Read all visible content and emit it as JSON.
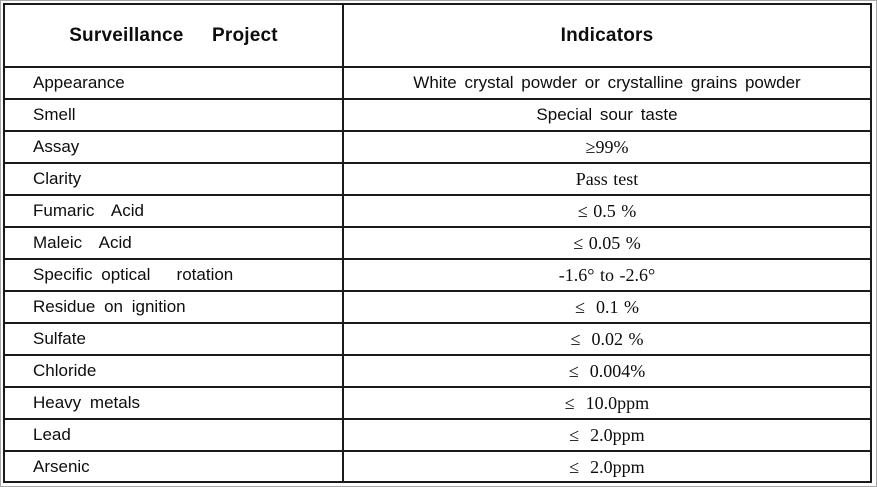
{
  "table": {
    "border_color": "#1a1a1a",
    "header": {
      "col1": "Surveillance   Project",
      "col2": "Indicators"
    },
    "rows": [
      {
        "label": "Appearance",
        "value": "White crystal powder or crystalline grains powder",
        "value_style": "sans"
      },
      {
        "label": "Smell",
        "value": "Special sour taste",
        "value_style": "sans"
      },
      {
        "label": "Assay",
        "value": "≥99%",
        "value_style": "serif"
      },
      {
        "label": "Clarity",
        "value": "Pass test",
        "value_style": "serif"
      },
      {
        "label": "Fumaric  Acid",
        "value": "≤ 0.5 %",
        "value_style": "serif"
      },
      {
        "label": "Maleic  Acid",
        "value": "≤ 0.05 %",
        "value_style": "serif"
      },
      {
        "label": "Specific optical   rotation",
        "value": "-1.6° to -2.6°",
        "value_style": "serif"
      },
      {
        "label": "Residue on ignition",
        "value": "≤  0.1 %",
        "value_style": "serif"
      },
      {
        "label": "Sulfate",
        "value": "≤  0.02 %",
        "value_style": "serif"
      },
      {
        "label": "Chloride",
        "value": "≤  0.004%",
        "value_style": "serif"
      },
      {
        "label": "Heavy metals",
        "value": "≤  10.0ppm",
        "value_style": "serif"
      },
      {
        "label": "Lead",
        "value": "≤  2.0ppm",
        "value_style": "serif"
      },
      {
        "label": "Arsenic",
        "value": "≤  2.0ppm",
        "value_style": "serif"
      }
    ]
  }
}
